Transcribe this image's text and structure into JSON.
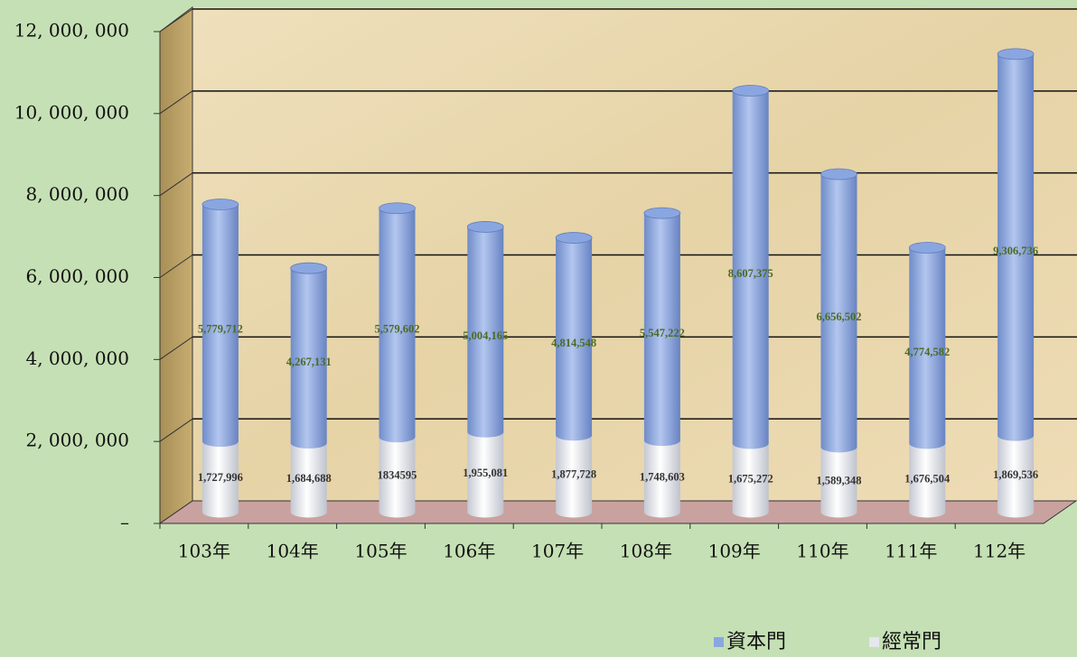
{
  "chart_data": {
    "type": "bar",
    "categories": [
      "103年",
      "104年",
      "105年",
      "106年",
      "107年",
      "108年",
      "109年",
      "110年",
      "111年",
      "112年"
    ],
    "series": [
      {
        "name": "經常門",
        "color": "#e4e7ee",
        "values": [
          1727996,
          1684688,
          1834595,
          1955081,
          1877728,
          1748603,
          1675272,
          1589348,
          1676504,
          1869536
        ],
        "value_labels": [
          "1,727,996",
          "1,684,688",
          "1834595",
          "1,955,081",
          "1,877,728",
          "1,748,603",
          "1,675,272",
          "1,589,348",
          "1,676,504",
          "1,869,536"
        ]
      },
      {
        "name": "資本門",
        "color": "#8aa6e0",
        "values": [
          5779712,
          4267131,
          5579602,
          5004165,
          4814548,
          5547222,
          8607375,
          6656502,
          4774582,
          9306736
        ],
        "value_labels": [
          "5,779,712",
          "4,267,131",
          "5,579,602",
          "5,004,165",
          "4,814,548",
          "5,547,222",
          "8,607,375",
          "6,656,502",
          "4,774,582",
          "9,306,736"
        ]
      }
    ],
    "stacked": true,
    "ylim": [
      0,
      12000000
    ],
    "yticks": [
      {
        "value": 0,
        "label": "–"
      },
      {
        "value": 2000000,
        "label": "2, 000, 000"
      },
      {
        "value": 4000000,
        "label": "4, 000, 000"
      },
      {
        "value": 6000000,
        "label": "6, 000, 000"
      },
      {
        "value": 8000000,
        "label": "8, 000, 000"
      },
      {
        "value": 10000000,
        "label": "10, 000, 000"
      },
      {
        "value": 12000000,
        "label": "12, 000, 000"
      }
    ],
    "grid": true
  }
}
